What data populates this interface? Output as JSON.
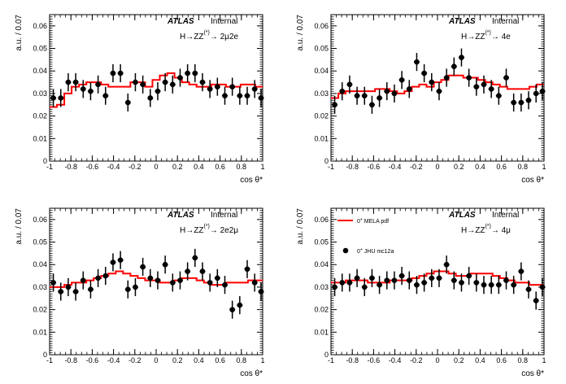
{
  "figure": {
    "atlas_label": "ATLAS",
    "status_label": "Internal",
    "colors": {
      "model": "#ff0000",
      "data": "#000000",
      "axis": "#000000"
    }
  },
  "chart_data": [
    {
      "type": "scatter",
      "title": "H→ZZ(*)→ 2μ2e",
      "channel_prefix": "H→ZZ",
      "channel_sup": "(*)",
      "channel_suffix": "→ 2μ2e",
      "xlabel": "cos θ*",
      "ylabel": "a.u. / 0.07",
      "xlim": [
        -1,
        1
      ],
      "ylim": [
        0,
        0.065
      ],
      "xticks": [
        "-1",
        "-0.8",
        "-0.6",
        "-0.4",
        "-0.2",
        "0",
        "0.2",
        "0.4",
        "0.6",
        "0.8",
        "1"
      ],
      "yticks": [
        "0",
        "0.01",
        "0.02",
        "0.03",
        "0.04",
        "0.05",
        "0.06"
      ],
      "grid": false,
      "series": [
        {
          "name": "0+ MELA pdf",
          "kind": "histogram",
          "x": [
            -0.965,
            -0.895,
            -0.825,
            -0.755,
            -0.685,
            -0.615,
            -0.545,
            -0.475,
            -0.405,
            -0.335,
            -0.265,
            -0.195,
            -0.125,
            -0.055,
            0.015,
            0.085,
            0.155,
            0.225,
            0.295,
            0.365,
            0.435,
            0.505,
            0.575,
            0.645,
            0.715,
            0.785,
            0.855,
            0.925,
            0.985
          ],
          "values": [
            0.024,
            0.025,
            0.03,
            0.033,
            0.034,
            0.035,
            0.035,
            0.034,
            0.033,
            0.033,
            0.033,
            0.035,
            0.035,
            0.033,
            0.036,
            0.038,
            0.039,
            0.037,
            0.035,
            0.034,
            0.033,
            0.033,
            0.034,
            0.034,
            0.033,
            0.033,
            0.034,
            0.034,
            0.033
          ]
        },
        {
          "name": "0+ JHU mc12a",
          "kind": "data",
          "x": [
            -0.965,
            -0.895,
            -0.825,
            -0.755,
            -0.685,
            -0.615,
            -0.545,
            -0.475,
            -0.405,
            -0.335,
            -0.265,
            -0.195,
            -0.125,
            -0.055,
            0.015,
            0.085,
            0.155,
            0.225,
            0.295,
            0.365,
            0.435,
            0.505,
            0.575,
            0.645,
            0.715,
            0.785,
            0.855,
            0.925,
            0.985
          ],
          "values": [
            0.028,
            0.028,
            0.035,
            0.035,
            0.032,
            0.031,
            0.034,
            0.029,
            0.039,
            0.039,
            0.026,
            0.035,
            0.034,
            0.028,
            0.031,
            0.035,
            0.034,
            0.037,
            0.039,
            0.039,
            0.035,
            0.032,
            0.033,
            0.029,
            0.033,
            0.029,
            0.029,
            0.032,
            0.028
          ],
          "errors": [
            0.004,
            0.004,
            0.004,
            0.004,
            0.004,
            0.004,
            0.004,
            0.004,
            0.004,
            0.004,
            0.004,
            0.004,
            0.004,
            0.004,
            0.004,
            0.004,
            0.004,
            0.004,
            0.004,
            0.004,
            0.004,
            0.004,
            0.004,
            0.004,
            0.004,
            0.004,
            0.004,
            0.004,
            0.004
          ]
        }
      ]
    },
    {
      "type": "scatter",
      "title": "H→ZZ(*)→ 4e",
      "channel_prefix": "H→ZZ",
      "channel_sup": "(*)",
      "channel_suffix": "→ 4e",
      "xlabel": "cos θ*",
      "ylabel": "a.u. / 0.07",
      "xlim": [
        -1,
        1
      ],
      "ylim": [
        0,
        0.065
      ],
      "xticks": [
        "-1",
        "-0.8",
        "-0.6",
        "-0.4",
        "-0.2",
        "0",
        "0.2",
        "0.4",
        "0.6",
        "0.8",
        "1"
      ],
      "yticks": [
        "0",
        "0.01",
        "0.02",
        "0.03",
        "0.04",
        "0.05",
        "0.06"
      ],
      "grid": false,
      "series": [
        {
          "name": "0+ MELA pdf",
          "kind": "histogram",
          "x": [
            -0.965,
            -0.895,
            -0.825,
            -0.755,
            -0.685,
            -0.615,
            -0.545,
            -0.475,
            -0.405,
            -0.335,
            -0.265,
            -0.195,
            -0.125,
            -0.055,
            0.015,
            0.085,
            0.155,
            0.225,
            0.295,
            0.365,
            0.435,
            0.505,
            0.575,
            0.645,
            0.715,
            0.785,
            0.855,
            0.925,
            0.985
          ],
          "values": [
            0.028,
            0.03,
            0.031,
            0.031,
            0.031,
            0.031,
            0.032,
            0.032,
            0.031,
            0.03,
            0.031,
            0.033,
            0.034,
            0.033,
            0.035,
            0.036,
            0.038,
            0.038,
            0.037,
            0.037,
            0.036,
            0.035,
            0.034,
            0.033,
            0.032,
            0.032,
            0.032,
            0.033,
            0.034
          ]
        },
        {
          "name": "0+ JHU mc12a",
          "kind": "data",
          "x": [
            -0.965,
            -0.895,
            -0.825,
            -0.755,
            -0.685,
            -0.615,
            -0.545,
            -0.475,
            -0.405,
            -0.335,
            -0.265,
            -0.195,
            -0.125,
            -0.055,
            0.015,
            0.085,
            0.155,
            0.225,
            0.295,
            0.365,
            0.435,
            0.505,
            0.575,
            0.645,
            0.715,
            0.785,
            0.855,
            0.925,
            0.985
          ],
          "values": [
            0.025,
            0.031,
            0.034,
            0.029,
            0.029,
            0.025,
            0.028,
            0.031,
            0.03,
            0.036,
            0.032,
            0.044,
            0.039,
            0.035,
            0.031,
            0.037,
            0.042,
            0.046,
            0.037,
            0.033,
            0.034,
            0.032,
            0.029,
            0.037,
            0.026,
            0.026,
            0.027,
            0.03,
            0.031
          ],
          "errors": [
            0.004,
            0.004,
            0.004,
            0.004,
            0.004,
            0.004,
            0.004,
            0.004,
            0.004,
            0.004,
            0.004,
            0.004,
            0.004,
            0.004,
            0.004,
            0.004,
            0.004,
            0.004,
            0.004,
            0.004,
            0.004,
            0.004,
            0.004,
            0.004,
            0.004,
            0.004,
            0.004,
            0.004,
            0.004
          ]
        }
      ]
    },
    {
      "type": "scatter",
      "title": "H→ZZ(*)→ 2e2μ",
      "channel_prefix": "H→ZZ",
      "channel_sup": "(*)",
      "channel_suffix": "→ 2e2μ",
      "xlabel": "cos θ*",
      "ylabel": "a.u. / 0.07",
      "xlim": [
        -1,
        1
      ],
      "ylim": [
        0,
        0.065
      ],
      "xticks": [
        "-1",
        "-0.8",
        "-0.6",
        "-0.4",
        "-0.2",
        "0",
        "0.2",
        "0.4",
        "0.6",
        "0.8",
        "1"
      ],
      "yticks": [
        "0",
        "0.01",
        "0.02",
        "0.03",
        "0.04",
        "0.05",
        "0.06"
      ],
      "grid": false,
      "series": [
        {
          "name": "0+ MELA pdf",
          "kind": "histogram",
          "x": [
            -0.965,
            -0.895,
            -0.825,
            -0.755,
            -0.685,
            -0.615,
            -0.545,
            -0.475,
            -0.405,
            -0.335,
            -0.265,
            -0.195,
            -0.125,
            -0.055,
            0.015,
            0.085,
            0.155,
            0.225,
            0.295,
            0.365,
            0.435,
            0.505,
            0.575,
            0.645,
            0.715,
            0.785,
            0.855,
            0.925,
            0.985
          ],
          "values": [
            0.03,
            0.03,
            0.031,
            0.032,
            0.032,
            0.033,
            0.034,
            0.035,
            0.036,
            0.037,
            0.036,
            0.035,
            0.034,
            0.033,
            0.033,
            0.032,
            0.032,
            0.033,
            0.034,
            0.034,
            0.033,
            0.032,
            0.031,
            0.031,
            0.032,
            0.032,
            0.032,
            0.033,
            0.033
          ]
        },
        {
          "name": "0+ JHU mc12a",
          "kind": "data",
          "x": [
            -0.965,
            -0.895,
            -0.825,
            -0.755,
            -0.685,
            -0.615,
            -0.545,
            -0.475,
            -0.405,
            -0.335,
            -0.265,
            -0.195,
            -0.125,
            -0.055,
            0.015,
            0.085,
            0.155,
            0.225,
            0.295,
            0.365,
            0.435,
            0.505,
            0.575,
            0.645,
            0.715,
            0.785,
            0.855,
            0.925,
            0.985
          ],
          "values": [
            0.032,
            0.028,
            0.03,
            0.028,
            0.033,
            0.029,
            0.034,
            0.035,
            0.041,
            0.042,
            0.029,
            0.03,
            0.039,
            0.034,
            0.033,
            0.04,
            0.032,
            0.033,
            0.037,
            0.043,
            0.037,
            0.032,
            0.034,
            0.031,
            0.02,
            0.022,
            0.038,
            0.032,
            0.028
          ],
          "errors": [
            0.004,
            0.004,
            0.004,
            0.004,
            0.004,
            0.004,
            0.004,
            0.004,
            0.004,
            0.004,
            0.004,
            0.004,
            0.004,
            0.004,
            0.004,
            0.004,
            0.004,
            0.004,
            0.004,
            0.004,
            0.004,
            0.004,
            0.004,
            0.004,
            0.004,
            0.004,
            0.004,
            0.004,
            0.004
          ]
        }
      ]
    },
    {
      "type": "scatter",
      "title": "H→ZZ(*)→ 4μ",
      "channel_prefix": "H→ZZ",
      "channel_sup": "(*)",
      "channel_suffix": "→ 4μ",
      "xlabel": "cos θ*",
      "ylabel": "a.u. / 0.07",
      "xlim": [
        -1,
        1
      ],
      "ylim": [
        0,
        0.065
      ],
      "xticks": [
        "-1",
        "-0.8",
        "-0.6",
        "-0.4",
        "-0.2",
        "0",
        "0.2",
        "0.4",
        "0.6",
        "0.8",
        "1"
      ],
      "yticks": [
        "0",
        "0.01",
        "0.02",
        "0.03",
        "0.04",
        "0.05",
        "0.06"
      ],
      "grid": false,
      "legend": {
        "position": "top-left",
        "entries": [
          {
            "label_base": "0",
            "label_sup": "+",
            "label_rest": " MELA pdf",
            "kind": "line"
          },
          {
            "label_base": "0",
            "label_sup": "+",
            "label_rest": " JHU mc12a",
            "kind": "marker"
          }
        ]
      },
      "series": [
        {
          "name": "0+ MELA pdf",
          "kind": "histogram",
          "x": [
            -0.965,
            -0.895,
            -0.825,
            -0.755,
            -0.685,
            -0.615,
            -0.545,
            -0.475,
            -0.405,
            -0.335,
            -0.265,
            -0.195,
            -0.125,
            -0.055,
            0.015,
            0.085,
            0.155,
            0.225,
            0.295,
            0.365,
            0.435,
            0.505,
            0.575,
            0.645,
            0.715,
            0.785,
            0.855,
            0.925,
            0.985
          ],
          "values": [
            0.032,
            0.032,
            0.033,
            0.033,
            0.033,
            0.032,
            0.032,
            0.032,
            0.033,
            0.033,
            0.033,
            0.034,
            0.035,
            0.036,
            0.037,
            0.037,
            0.036,
            0.035,
            0.035,
            0.036,
            0.036,
            0.036,
            0.035,
            0.034,
            0.033,
            0.032,
            0.032,
            0.031,
            0.031
          ]
        },
        {
          "name": "0+ JHU mc12a",
          "kind": "data",
          "x": [
            -0.965,
            -0.895,
            -0.825,
            -0.755,
            -0.685,
            -0.615,
            -0.545,
            -0.475,
            -0.405,
            -0.335,
            -0.265,
            -0.195,
            -0.125,
            -0.055,
            0.015,
            0.085,
            0.155,
            0.225,
            0.295,
            0.365,
            0.435,
            0.505,
            0.575,
            0.645,
            0.715,
            0.785,
            0.855,
            0.925,
            0.985
          ],
          "values": [
            0.03,
            0.032,
            0.032,
            0.034,
            0.03,
            0.034,
            0.031,
            0.033,
            0.033,
            0.035,
            0.033,
            0.031,
            0.032,
            0.034,
            0.034,
            0.04,
            0.033,
            0.032,
            0.035,
            0.032,
            0.031,
            0.031,
            0.031,
            0.033,
            0.031,
            0.037,
            0.029,
            0.024,
            0.03
          ],
          "errors": [
            0.004,
            0.004,
            0.004,
            0.004,
            0.004,
            0.004,
            0.004,
            0.004,
            0.004,
            0.004,
            0.004,
            0.004,
            0.004,
            0.004,
            0.004,
            0.004,
            0.004,
            0.004,
            0.004,
            0.004,
            0.004,
            0.004,
            0.004,
            0.004,
            0.004,
            0.004,
            0.004,
            0.004,
            0.004
          ]
        }
      ]
    }
  ]
}
